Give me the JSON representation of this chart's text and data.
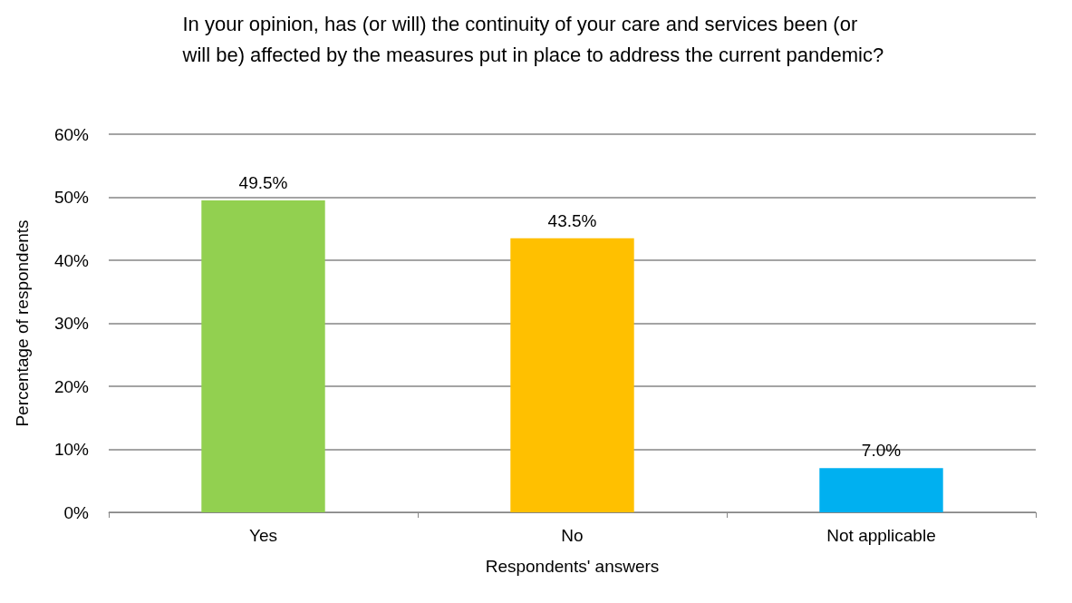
{
  "chart_data": {
    "type": "bar",
    "title": "In your opinion, has (or will) the continuity of your care and services been (or will be) affected by the measures put in place to address the current pandemic?",
    "xlabel": "Respondents' answers",
    "ylabel": "Percentage of respondents",
    "categories": [
      "Yes",
      "No",
      "Not applicable"
    ],
    "values": [
      49.5,
      43.5,
      7.0
    ],
    "colors": [
      "#92d050",
      "#ffc000",
      "#00b0f0"
    ],
    "value_labels": [
      "49.5%",
      "43.5%",
      "7.0%"
    ],
    "ylim": [
      0,
      60
    ],
    "yticks": [
      {
        "value": 0,
        "label": "0%"
      },
      {
        "value": 10,
        "label": "10%"
      },
      {
        "value": 20,
        "label": "20%"
      },
      {
        "value": 30,
        "label": "30%"
      },
      {
        "value": 40,
        "label": "40%"
      },
      {
        "value": 50,
        "label": "50%"
      },
      {
        "value": 60,
        "label": "60%"
      }
    ],
    "grid": "y"
  }
}
